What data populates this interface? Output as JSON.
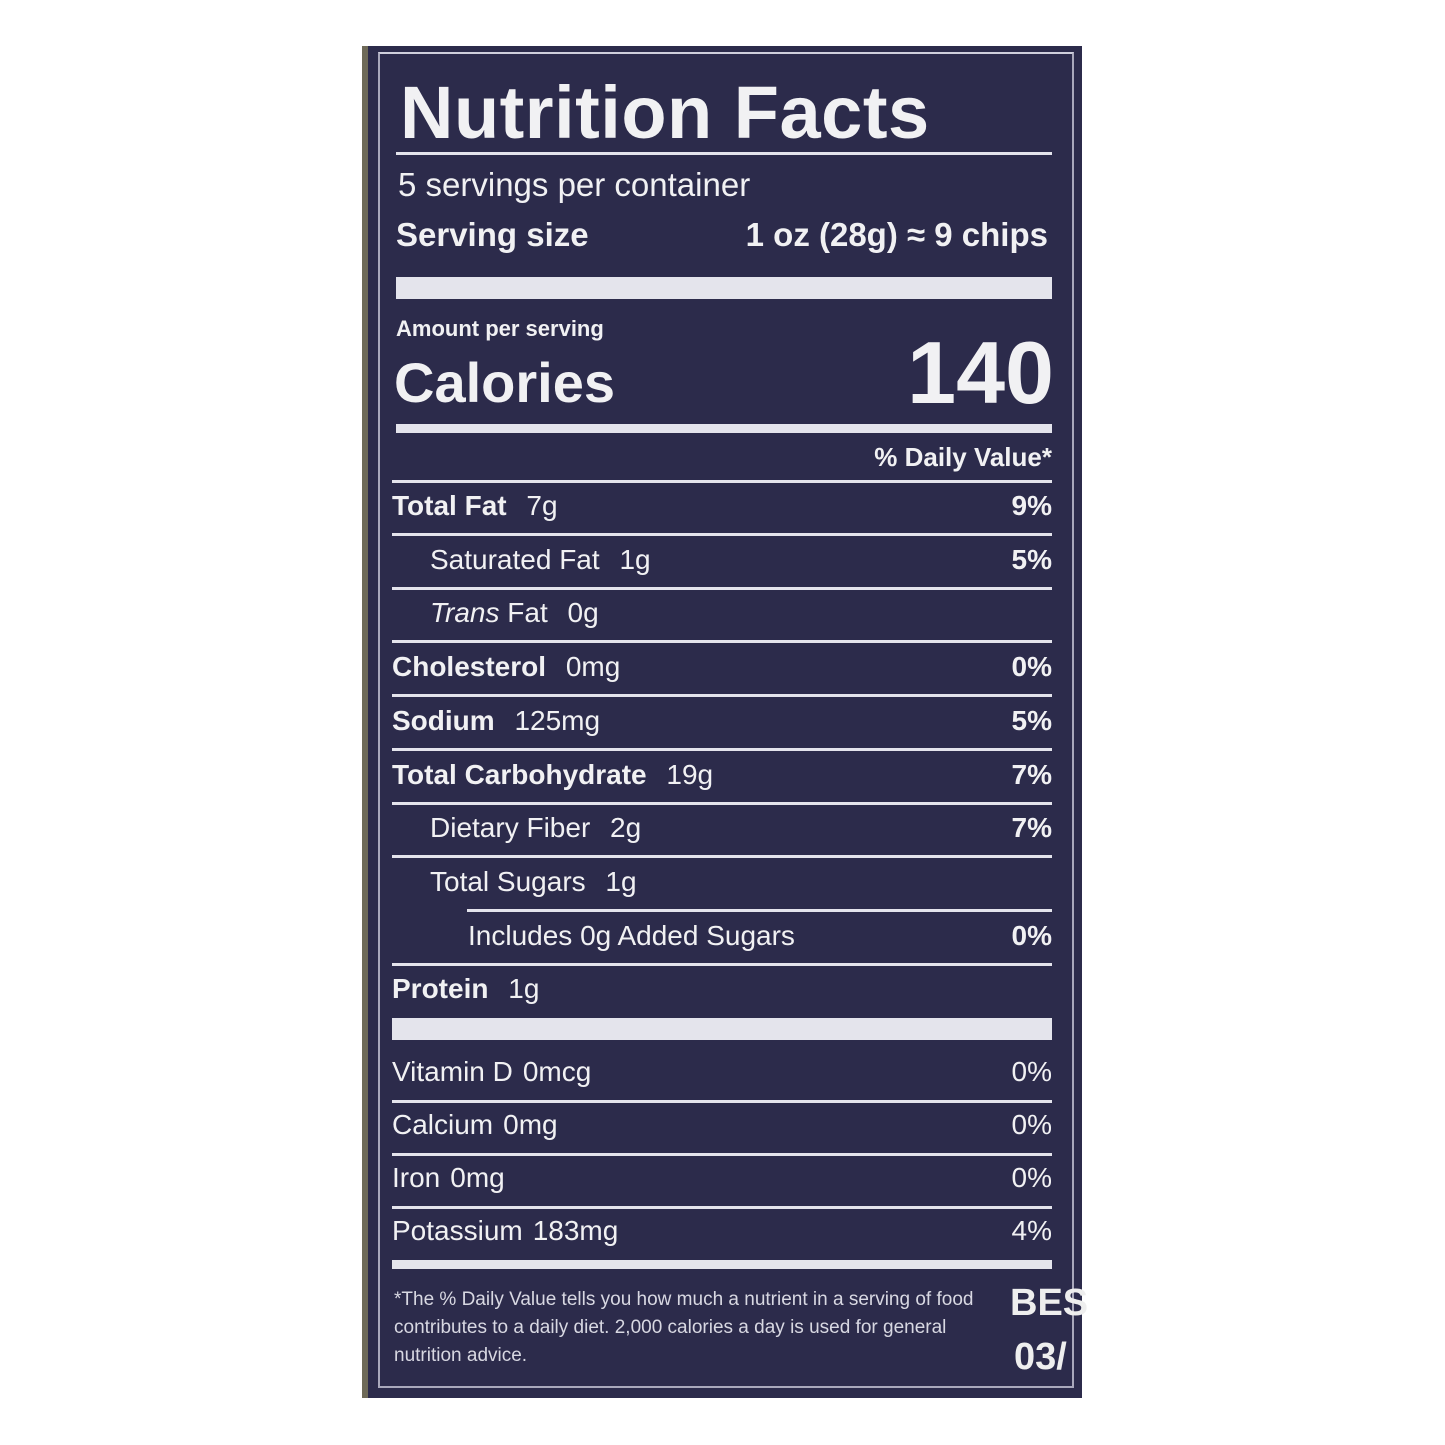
{
  "title": "Nutrition Facts",
  "servings_per_container": "5 servings per container",
  "serving_size_label": "Serving size",
  "serving_size_value": "1 oz (28g) ≈ 9 chips",
  "amount_per_serving": "Amount per serving",
  "calories_label": "Calories",
  "calories_value": "140",
  "daily_value_header": "% Daily Value*",
  "nutrients": [
    {
      "name": "Total Fat",
      "amount": "7g",
      "dv": "9%"
    },
    {
      "name": "Saturated Fat",
      "amount": "1g",
      "dv": "5%"
    },
    {
      "name": "Trans",
      "name_suffix": "Fat",
      "amount": "0g",
      "dv": ""
    },
    {
      "name": "Cholesterol",
      "amount": "0mg",
      "dv": "0%"
    },
    {
      "name": "Sodium",
      "amount": "125mg",
      "dv": "5%"
    },
    {
      "name": "Total Carbohydrate",
      "amount": "19g",
      "dv": "7%"
    },
    {
      "name": "Dietary Fiber",
      "amount": "2g",
      "dv": "7%"
    },
    {
      "name": "Total Sugars",
      "amount": "1g",
      "dv": ""
    },
    {
      "name": "Includes 0g Added Sugars",
      "amount": "",
      "dv": "0%"
    },
    {
      "name": "Protein",
      "amount": "1g",
      "dv": ""
    }
  ],
  "vitamins": [
    {
      "name": "Vitamin D",
      "amount": "0mcg",
      "dv": "0%"
    },
    {
      "name": "Calcium",
      "amount": "0mg",
      "dv": "0%"
    },
    {
      "name": "Iron",
      "amount": "0mg",
      "dv": "0%"
    },
    {
      "name": "Potassium",
      "amount": "183mg",
      "dv": "4%"
    }
  ],
  "footnote": "*The % Daily Value tells you how much a nutrient in a serving of food contributes to a daily diet. 2,000 calories a day is used for general nutrition advice.",
  "best_by_partial": "BES",
  "date_partial": "03/",
  "colors": {
    "label_background": "#2c2b4b",
    "text": "#f1f1f3"
  }
}
